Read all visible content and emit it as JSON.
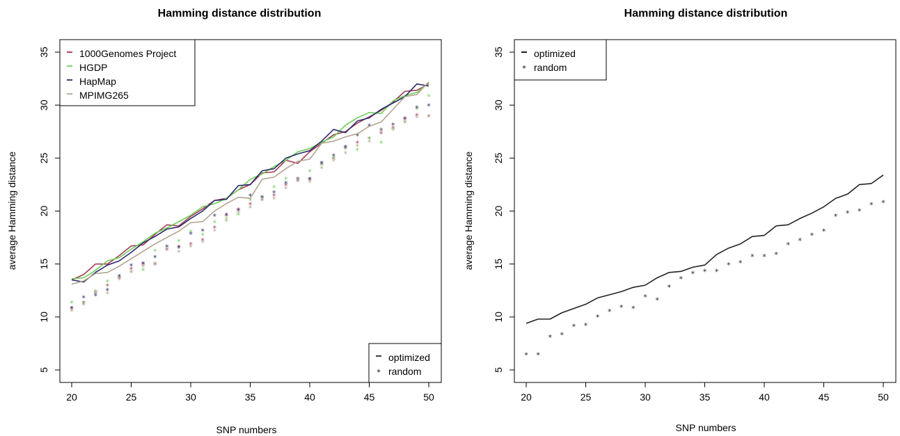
{
  "chart_data": [
    {
      "type": "line",
      "title": "Hamming distance distribution",
      "xlabel": "SNP numbers",
      "ylabel": "average Hamming distance",
      "xlim": [
        20,
        50
      ],
      "ylim": [
        5,
        35
      ],
      "xticks": [
        "20",
        "25",
        "30",
        "35",
        "40",
        "45",
        "50"
      ],
      "yticks": [
        "5",
        "10",
        "15",
        "20",
        "25",
        "30",
        "35"
      ],
      "grid": false,
      "x": [
        20,
        21,
        22,
        23,
        24,
        25,
        26,
        27,
        28,
        29,
        30,
        31,
        32,
        33,
        34,
        35,
        36,
        37,
        38,
        39,
        40,
        41,
        42,
        43,
        44,
        45,
        46,
        47,
        48,
        49,
        50
      ],
      "legend_top": {
        "placement": "top-left",
        "entries": [
          {
            "label": "1000Genomes Project",
            "color": "#a63a52"
          },
          {
            "label": "HGDP",
            "color": "#6ccf57"
          },
          {
            "label": "HapMap",
            "color": "#2b2a6b"
          },
          {
            "label": "MPIMG265",
            "color": "#b2a48f"
          }
        ]
      },
      "legend_bottom": {
        "placement": "bottom-right",
        "entries": [
          {
            "label": "optimized",
            "symbol": "line"
          },
          {
            "label": "random",
            "symbol": "star"
          }
        ]
      },
      "series": [
        {
          "name": "1000Genomes Project",
          "color": "#a63a52",
          "optimized": [
            13.5,
            14.0,
            15.0,
            15.0,
            15.8,
            16.7,
            16.8,
            17.8,
            18.7,
            18.6,
            19.5,
            20.2,
            21.0,
            21.2,
            22.0,
            22.5,
            23.6,
            23.7,
            24.8,
            24.5,
            25.6,
            26.4,
            27.2,
            27.5,
            28.3,
            28.9,
            29.5,
            30.3,
            31.3,
            31.4,
            32.0
          ],
          "random": [
            10.7,
            11.3,
            12.2,
            12.9,
            13.6,
            14.5,
            14.9,
            14.9,
            16.3,
            16.6,
            16.8,
            17.2,
            18.4,
            19.5,
            20.1,
            20.6,
            21.0,
            21.4,
            22.4,
            22.8,
            22.9,
            24.4,
            24.9,
            25.9,
            26.4,
            26.8,
            27.3,
            27.8,
            28.6,
            29.0,
            28.9
          ]
        },
        {
          "name": "HGDP",
          "color": "#6ccf57",
          "optimized": [
            13.6,
            13.7,
            14.4,
            15.3,
            15.6,
            16.4,
            17.1,
            17.9,
            18.4,
            19.0,
            19.6,
            20.4,
            20.7,
            21.2,
            22.0,
            23.0,
            23.5,
            24.2,
            24.8,
            25.6,
            25.9,
            26.5,
            27.0,
            28.1,
            28.8,
            29.3,
            29.2,
            30.4,
            30.9,
            31.2,
            32.1
          ],
          "random": [
            11.3,
            11.2,
            12.4,
            13.3,
            13.8,
            14.2,
            14.4,
            16.2,
            16.6,
            17.1,
            18.0,
            17.7,
            18.9,
            19.2,
            19.6,
            21.0,
            21.3,
            22.2,
            23.0,
            22.9,
            23.7,
            24.3,
            25.0,
            25.8,
            25.7,
            26.8,
            26.4,
            27.6,
            28.3,
            29.6,
            30.8
          ]
        },
        {
          "name": "HapMap",
          "color": "#2b2a6b",
          "optimized": [
            13.5,
            13.3,
            14.2,
            14.9,
            15.3,
            16.1,
            17.0,
            17.6,
            18.3,
            18.5,
            19.3,
            20.0,
            21.0,
            21.1,
            22.4,
            22.5,
            23.8,
            24.0,
            25.0,
            25.4,
            25.7,
            26.6,
            27.7,
            27.4,
            28.5,
            28.8,
            29.6,
            30.2,
            30.8,
            32.0,
            31.8
          ],
          "random": [
            10.8,
            11.8,
            12.0,
            12.5,
            13.8,
            14.8,
            15.0,
            15.6,
            16.6,
            16.5,
            17.8,
            18.1,
            19.5,
            19.6,
            20.0,
            21.4,
            21.2,
            21.7,
            22.6,
            23.0,
            23.0,
            24.5,
            25.2,
            26.0,
            27.1,
            28.0,
            27.6,
            28.1,
            28.7,
            29.7,
            29.9
          ]
        },
        {
          "name": "MPIMG265",
          "color": "#b2a48f",
          "optimized": [
            13.1,
            13.4,
            14.1,
            14.2,
            14.8,
            15.5,
            16.2,
            16.9,
            17.5,
            18.1,
            18.9,
            19.0,
            20.0,
            20.7,
            21.3,
            21.2,
            23.0,
            23.2,
            24.0,
            24.7,
            24.9,
            26.4,
            26.6,
            27.0,
            27.3,
            28.0,
            28.4,
            29.6,
            30.8,
            31.0,
            32.2
          ],
          "random": [
            10.5,
            11.1,
            12.3,
            12.2,
            13.5,
            14.2,
            14.7,
            15.0,
            16.4,
            16.1,
            16.6,
            17.0,
            18.1,
            19.0,
            19.8,
            20.3,
            21.0,
            21.1,
            22.1,
            22.9,
            22.7,
            24.0,
            24.7,
            25.4,
            26.1,
            26.5,
            27.5,
            27.7,
            28.4,
            28.8,
            28.9
          ]
        }
      ]
    },
    {
      "type": "line",
      "title": "Hamming distance distribution",
      "xlabel": "SNP numbers",
      "ylabel": "average Hamming distance",
      "xlim": [
        20,
        50
      ],
      "ylim": [
        5,
        35
      ],
      "xticks": [
        "20",
        "25",
        "30",
        "35",
        "40",
        "45",
        "50"
      ],
      "yticks": [
        "5",
        "10",
        "15",
        "20",
        "25",
        "30",
        "35"
      ],
      "grid": false,
      "x": [
        20,
        21,
        22,
        23,
        24,
        25,
        26,
        27,
        28,
        29,
        30,
        31,
        32,
        33,
        34,
        35,
        36,
        37,
        38,
        39,
        40,
        41,
        42,
        43,
        44,
        45,
        46,
        47,
        48,
        49,
        50
      ],
      "legend_top": {
        "placement": "top-left",
        "entries": [
          {
            "label": "optimized",
            "symbol": "line"
          },
          {
            "label": "random",
            "symbol": "star"
          }
        ]
      },
      "series": [
        {
          "color": "#222222",
          "optimized": [
            9.4,
            9.8,
            9.8,
            10.4,
            10.8,
            11.2,
            11.8,
            12.1,
            12.4,
            12.8,
            13.0,
            13.7,
            14.2,
            14.3,
            14.7,
            14.9,
            15.9,
            16.5,
            16.9,
            17.6,
            17.7,
            18.6,
            18.7,
            19.3,
            19.8,
            20.4,
            21.2,
            21.6,
            22.5,
            22.6,
            23.4
          ],
          "random": [
            6.4,
            6.4,
            8.1,
            8.3,
            9.1,
            9.2,
            10.0,
            10.5,
            10.9,
            10.8,
            11.9,
            11.6,
            12.8,
            13.6,
            14.1,
            14.3,
            14.3,
            14.9,
            15.1,
            15.7,
            15.7,
            15.9,
            16.8,
            17.2,
            17.7,
            18.1,
            19.5,
            19.8,
            20.0,
            20.6,
            20.8
          ]
        }
      ]
    }
  ]
}
